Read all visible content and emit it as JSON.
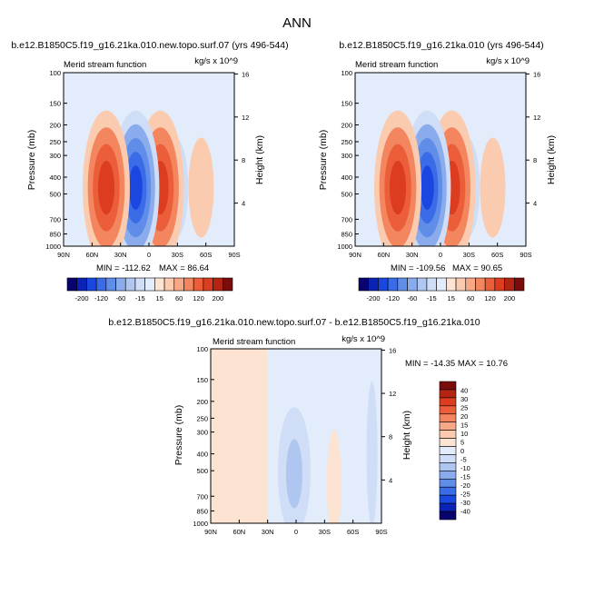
{
  "figure": {
    "title": "ANN"
  },
  "colors": {
    "diverging_scale": [
      "#08036f",
      "#0b22b6",
      "#1a47e0",
      "#3a6ce8",
      "#5f8de8",
      "#8aacec",
      "#aec6f0",
      "#cfdef6",
      "#e3ecfb",
      "#fde3d2",
      "#fbcbb0",
      "#f7a987",
      "#f3855f",
      "#ec5e3a",
      "#dc3d20",
      "#b42413",
      "#7a0d0c"
    ]
  },
  "chart_data": [
    {
      "type": "heatmap",
      "title": "b.e12.B1850C5.f19_g16.21ka.010.new.topo.surf.07 (yrs 496-544)",
      "subtitle": "Merid stream function",
      "units": "kg/s x 10^9",
      "ylabel": "Pressure (mb)",
      "ylabel_right": "Height (km)",
      "x_ticks": [
        "90N",
        "60N",
        "30N",
        "0",
        "30S",
        "60S",
        "90S"
      ],
      "y_ticks": [
        100,
        150,
        200,
        250,
        300,
        400,
        500,
        700,
        850,
        1000
      ],
      "height_ticks": [
        4,
        8,
        12,
        16
      ],
      "ylim": [
        1000,
        100
      ],
      "xlim": [
        "90N",
        "90S"
      ],
      "min_label": "MIN = -112.62",
      "max_label": "MAX = 86.64",
      "features": [
        {
          "lat": -55,
          "sign": 1,
          "peak": 8
        },
        {
          "lat": -28,
          "sign": -1,
          "peak": -10
        },
        {
          "lat": -12,
          "sign": 1,
          "peak": 60
        },
        {
          "lat": 14,
          "sign": -1,
          "peak": -112
        },
        {
          "lat": 45,
          "sign": 1,
          "peak": 60
        }
      ],
      "colorbar": {
        "labels": [
          "-200",
          "-120",
          "-60",
          "-15",
          "15",
          "60",
          "120",
          "200"
        ]
      }
    },
    {
      "type": "heatmap",
      "title": "b.e12.B1850C5.f19_g16.21ka.010 (yrs 496-544)",
      "subtitle": "Merid stream function",
      "units": "kg/s x 10^9",
      "ylabel": "Pressure (mb)",
      "ylabel_right": "Height (km)",
      "x_ticks": [
        "90N",
        "60N",
        "30N",
        "0",
        "30S",
        "60S",
        "90S"
      ],
      "y_ticks": [
        100,
        150,
        200,
        250,
        300,
        400,
        500,
        700,
        850,
        1000
      ],
      "height_ticks": [
        4,
        8,
        12,
        16
      ],
      "ylim": [
        1000,
        100
      ],
      "xlim": [
        "90N",
        "90S"
      ],
      "min_label": "MIN = -109.56",
      "max_label": "MAX = 90.65",
      "features": [
        {
          "lat": -55,
          "sign": 1,
          "peak": 8
        },
        {
          "lat": -28,
          "sign": -1,
          "peak": -10
        },
        {
          "lat": -12,
          "sign": 1,
          "peak": 60
        },
        {
          "lat": 14,
          "sign": -1,
          "peak": -109
        },
        {
          "lat": 45,
          "sign": 1,
          "peak": 60
        }
      ],
      "colorbar": {
        "labels": [
          "-200",
          "-120",
          "-60",
          "-15",
          "15",
          "60",
          "120",
          "200"
        ]
      }
    },
    {
      "type": "heatmap",
      "title": "b.e12.B1850C5.f19_g16.21ka.010.new.topo.surf.07 - b.e12.B1850C5.f19_g16.21ka.010",
      "subtitle": "Merid stream function",
      "units": "kg/s x 10^9",
      "ylabel": "Pressure (mb)",
      "ylabel_right": "Height (km)",
      "x_ticks": [
        "90N",
        "60N",
        "30N",
        "0",
        "30S",
        "60S",
        "90S"
      ],
      "y_ticks": [
        100,
        150,
        200,
        250,
        300,
        400,
        500,
        700,
        850,
        1000
      ],
      "height_ticks": [
        4,
        8,
        12,
        16
      ],
      "ylim": [
        1000,
        100
      ],
      "xlim": [
        "90N",
        "90S"
      ],
      "minmax_label": "MIN = -14.35  MAX = 10.76",
      "colorbar": {
        "labels": [
          "40",
          "30",
          "25",
          "20",
          "15",
          "10",
          "5",
          "0",
          "-5",
          "-10",
          "-15",
          "-20",
          "-25",
          "-30",
          "-40"
        ]
      }
    }
  ]
}
